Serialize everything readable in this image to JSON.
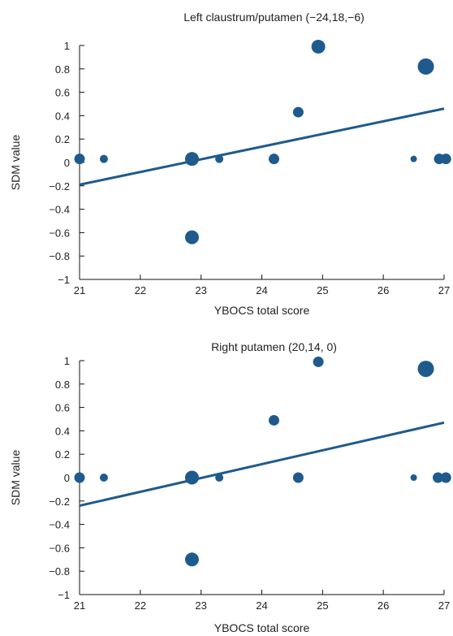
{
  "colors": {
    "marker": "#1f5a8c",
    "regression": "#1f5a8c",
    "axis": "#111111"
  },
  "chart_data": [
    {
      "type": "scatter",
      "title": "Left claustrum/putamen (−24,18,−6)",
      "xlabel": "YBOCS total score",
      "ylabel": "SDM value",
      "xlim": [
        21,
        27
      ],
      "ylim": [
        -1,
        1
      ],
      "xticks": [
        "21",
        "22",
        "23",
        "24",
        "25",
        "26",
        "27"
      ],
      "yticks": [
        "−1",
        "−0.8",
        "−0.6",
        "−0.4",
        "−0.2",
        "0",
        "0.2",
        "0.4",
        "0.6",
        "0.8",
        "1"
      ],
      "grid": false,
      "points": [
        {
          "x": 21.0,
          "y": 0.03,
          "size": "medium"
        },
        {
          "x": 21.4,
          "y": 0.03,
          "size": "small"
        },
        {
          "x": 22.85,
          "y": 0.03,
          "size": "large"
        },
        {
          "x": 23.3,
          "y": 0.03,
          "size": "small"
        },
        {
          "x": 24.2,
          "y": 0.03,
          "size": "medium"
        },
        {
          "x": 24.6,
          "y": 0.43,
          "size": "medium"
        },
        {
          "x": 24.93,
          "y": 0.99,
          "size": "large"
        },
        {
          "x": 26.5,
          "y": 0.03,
          "size": "tiny"
        },
        {
          "x": 26.7,
          "y": 0.82,
          "size": "xlarge"
        },
        {
          "x": 26.92,
          "y": 0.03,
          "size": "medium"
        },
        {
          "x": 27.03,
          "y": 0.03,
          "size": "medium"
        },
        {
          "x": 22.85,
          "y": -0.64,
          "size": "large"
        }
      ],
      "regression": {
        "x": [
          21,
          27
        ],
        "y": [
          -0.19,
          0.46
        ]
      }
    },
    {
      "type": "scatter",
      "title": "Right putamen (20,14, 0)",
      "xlabel": "YBOCS total score",
      "ylabel": "SDM value",
      "xlim": [
        21,
        27
      ],
      "ylim": [
        -1,
        1
      ],
      "xticks": [
        "21",
        "22",
        "23",
        "24",
        "25",
        "26",
        "27"
      ],
      "yticks": [
        "−1",
        "−0.8",
        "−0.6",
        "−0.4",
        "−0.2",
        "0",
        "0.2",
        "0.4",
        "0.6",
        "0.8",
        "1"
      ],
      "grid": false,
      "points": [
        {
          "x": 21.0,
          "y": 0.0,
          "size": "medium"
        },
        {
          "x": 21.4,
          "y": 0.0,
          "size": "small"
        },
        {
          "x": 22.85,
          "y": 0.0,
          "size": "large"
        },
        {
          "x": 23.3,
          "y": 0.0,
          "size": "small"
        },
        {
          "x": 24.2,
          "y": 0.49,
          "size": "medium"
        },
        {
          "x": 24.6,
          "y": 0.0,
          "size": "medium"
        },
        {
          "x": 24.93,
          "y": 0.99,
          "size": "medium"
        },
        {
          "x": 26.5,
          "y": 0.0,
          "size": "tiny"
        },
        {
          "x": 26.7,
          "y": 0.93,
          "size": "xlarge"
        },
        {
          "x": 26.9,
          "y": 0.0,
          "size": "medium"
        },
        {
          "x": 27.03,
          "y": 0.0,
          "size": "medium"
        },
        {
          "x": 22.85,
          "y": -0.7,
          "size": "large"
        }
      ],
      "regression": {
        "x": [
          21,
          27
        ],
        "y": [
          -0.24,
          0.47
        ]
      }
    }
  ]
}
